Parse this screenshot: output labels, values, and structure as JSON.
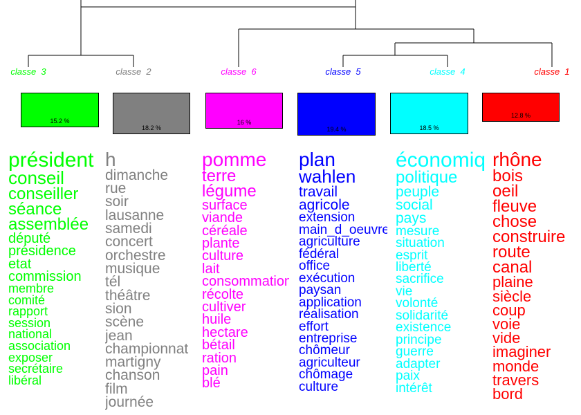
{
  "classes": [
    {
      "label": "classe  3",
      "color": "#00ff00",
      "percent": "15.2 %",
      "words": [
        "président",
        "conseil",
        "conseiller",
        "séance",
        "assemblée",
        "député",
        "présidence",
        "etat",
        "commission",
        "membre",
        "comité",
        "rapport",
        "session",
        "national",
        "association",
        "exposer",
        "secrétaire",
        "libéral"
      ]
    },
    {
      "label": "classe  2",
      "color": "#808080",
      "percent": "18.2 %",
      "words": [
        "h",
        "dimanche",
        "rue",
        "soir",
        "lausanne",
        "samedi",
        "concert",
        "orchestre",
        "musique",
        "tél",
        "théâtre",
        "sion",
        "scène",
        "jean",
        "championnat",
        "martigny",
        "chanson",
        "film",
        "journée"
      ]
    },
    {
      "label": "classe  6",
      "color": "#ff00ff",
      "percent": "16 %",
      "words": [
        "pomme",
        "terre",
        "légume",
        "surface",
        "viande",
        "céréale",
        "plante",
        "culture",
        "lait",
        "consommation",
        "récolte",
        "cultiver",
        "huile",
        "hectare",
        "bétail",
        "ration",
        "pain",
        "blé"
      ]
    },
    {
      "label": "classe  5",
      "color": "#0000ff",
      "percent": "19.4 %",
      "words": [
        "plan",
        "wahlen",
        "travail",
        "agricole",
        "extension",
        "main_d_oeuvre",
        "agriculture",
        "fédéral",
        "office",
        "exécution",
        "paysan",
        "application",
        "réalisation",
        "effort",
        "entreprise",
        "chômeur",
        "agriculteur",
        "chômage",
        "culture"
      ]
    },
    {
      "label": "classe  4",
      "color": "#00ffff",
      "percent": "18.5 %",
      "words": [
        "économique",
        "politique",
        "peuple",
        "social",
        "pays",
        "mesure",
        "situation",
        "esprit",
        "liberté",
        "sacrifice",
        "vie",
        "volonté",
        "solidarité",
        "existence",
        "principe",
        "guerre",
        "adapter",
        "paix",
        "intérêt"
      ]
    },
    {
      "label": "classe  1",
      "color": "#ff0000",
      "percent": "12.8 %",
      "words": [
        "rhône",
        "bois",
        "oeil",
        "fleuve",
        "chose",
        "construire",
        "route",
        "canal",
        "plaine",
        "siècle",
        "coup",
        "voie",
        "vide",
        "imaginer",
        "monde",
        "travers",
        "bord"
      ]
    }
  ]
}
